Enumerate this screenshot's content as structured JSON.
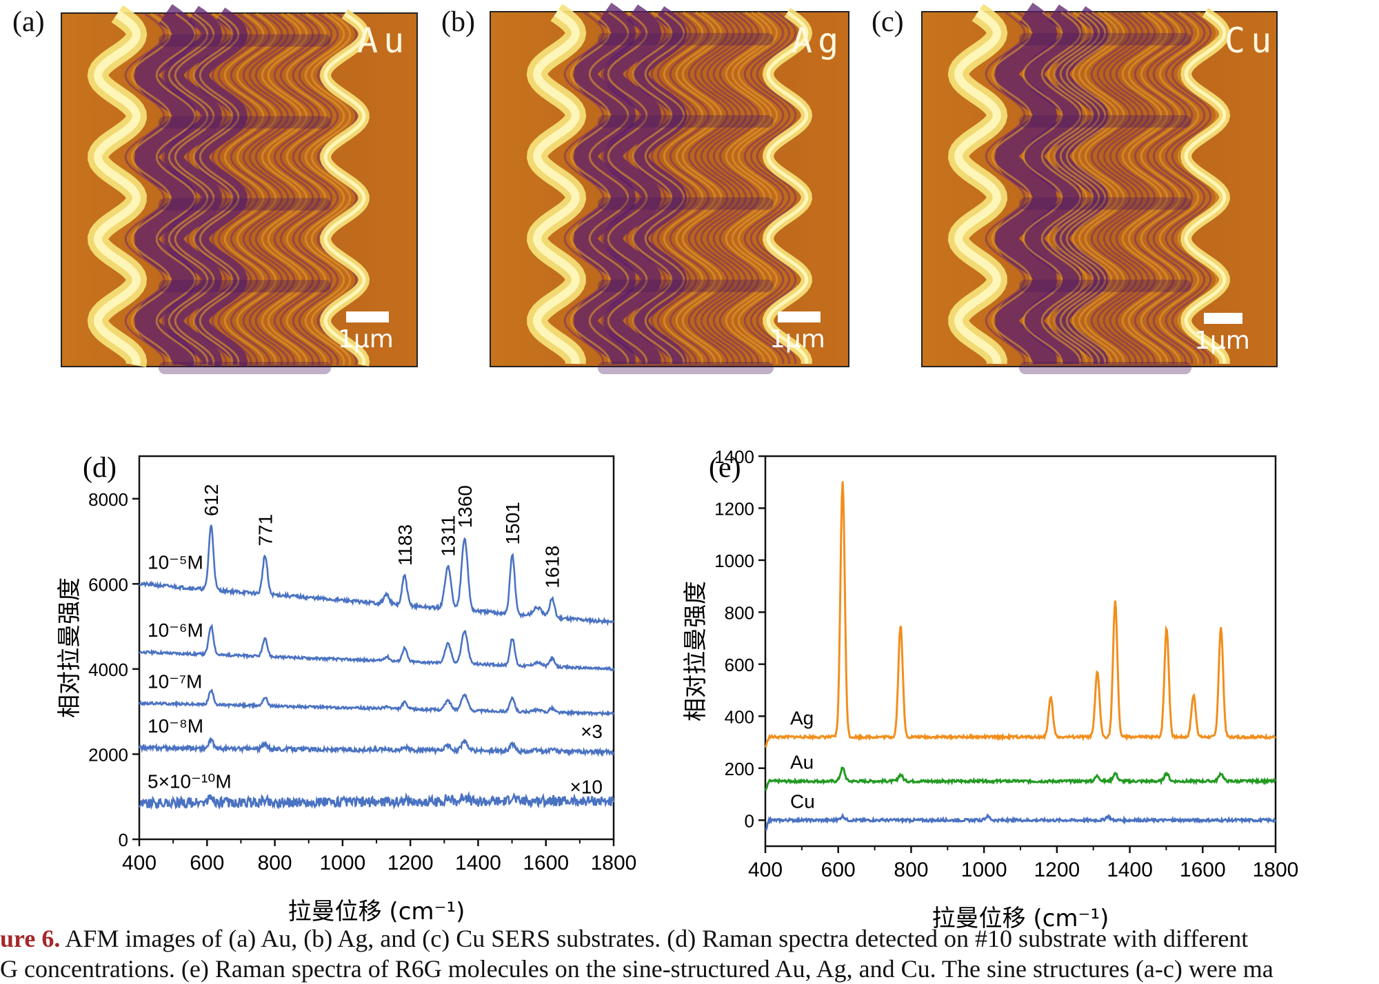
{
  "afm_panels": [
    {
      "letter": "(a)",
      "metal": "Au",
      "scale": "1μm"
    },
    {
      "letter": "(b)",
      "metal": "Ag",
      "scale": "1μm"
    },
    {
      "letter": "(c)",
      "metal": "Cu",
      "scale": "1μm"
    }
  ],
  "caption": {
    "label": "ure 6.",
    "line1": " AFM images of (a) Au, (b) Ag, and (c) Cu SERS substrates. (d) Raman spectra detected on #10 substrate with different",
    "line2": "G concentrations. (e) Raman spectra of R6G molecules on the sine-structured Au, Ag, and Cu. The sine structures (a-c) were ma"
  },
  "colors": {
    "blue": "#4a72c2",
    "orange": "#f28e1c",
    "green": "#229a22"
  },
  "chart_data": [
    {
      "type": "line",
      "panel": "(d)",
      "xlabel": "拉曼位移 (cm⁻¹)",
      "ylabel": "相对拉曼强度",
      "xlim": [
        400,
        1800
      ],
      "ylim": [
        0,
        9000
      ],
      "xticks": [
        400,
        600,
        800,
        1000,
        1200,
        1400,
        1600,
        1800
      ],
      "yticks": [
        0,
        2000,
        4000,
        6000,
        8000
      ],
      "peaks": [
        612,
        771,
        1183,
        1311,
        1360,
        1501,
        1618
      ],
      "series": [
        {
          "name": "10⁻⁵M",
          "baseline": 6000,
          "end": 5100,
          "scale": 1.0,
          "noise": 40,
          "mult": ""
        },
        {
          "name": "10⁻⁶M",
          "baseline": 4400,
          "end": 4000,
          "scale": 0.45,
          "noise": 30,
          "mult": ""
        },
        {
          "name": "10⁻⁷M",
          "baseline": 3200,
          "end": 2950,
          "scale": 0.22,
          "noise": 30,
          "mult": ""
        },
        {
          "name": "10⁻⁸M",
          "baseline": 2150,
          "end": 2050,
          "scale": 0.12,
          "noise": 50,
          "mult": "×3"
        },
        {
          "name": "5×10⁻¹⁰M",
          "baseline": 850,
          "end": 900,
          "scale": 0.08,
          "noise": 120,
          "mult": "×10"
        }
      ],
      "peak_heights": [
        1500,
        900,
        700,
        1000,
        1700,
        1400,
        450
      ]
    },
    {
      "type": "line",
      "panel": "(e)",
      "xlabel": "拉曼位移 (cm⁻¹)",
      "ylabel": "相对拉曼强度",
      "xlim": [
        400,
        1800
      ],
      "ylim": [
        -100,
        1400
      ],
      "xticks": [
        400,
        600,
        800,
        1000,
        1200,
        1400,
        1600,
        1800
      ],
      "yticks": [
        0,
        200,
        400,
        600,
        800,
        1000,
        1200,
        1400
      ],
      "series": [
        {
          "name": "Ag",
          "color": "orange",
          "baseline": 320,
          "peaks": [
            [
              612,
              980
            ],
            [
              771,
              430
            ],
            [
              1183,
              150
            ],
            [
              1311,
              250
            ],
            [
              1360,
              520
            ],
            [
              1501,
              420
            ],
            [
              1575,
              160
            ],
            [
              1650,
              420
            ]
          ]
        },
        {
          "name": "Au",
          "color": "green",
          "baseline": 150,
          "peaks": [
            [
              612,
              50
            ],
            [
              771,
              25
            ],
            [
              1311,
              20
            ],
            [
              1360,
              30
            ],
            [
              1501,
              30
            ],
            [
              1650,
              30
            ]
          ]
        },
        {
          "name": "Cu",
          "color": "blue",
          "baseline": 0,
          "peaks": [
            [
              612,
              15
            ],
            [
              1010,
              15
            ],
            [
              1340,
              15
            ]
          ]
        }
      ]
    }
  ]
}
